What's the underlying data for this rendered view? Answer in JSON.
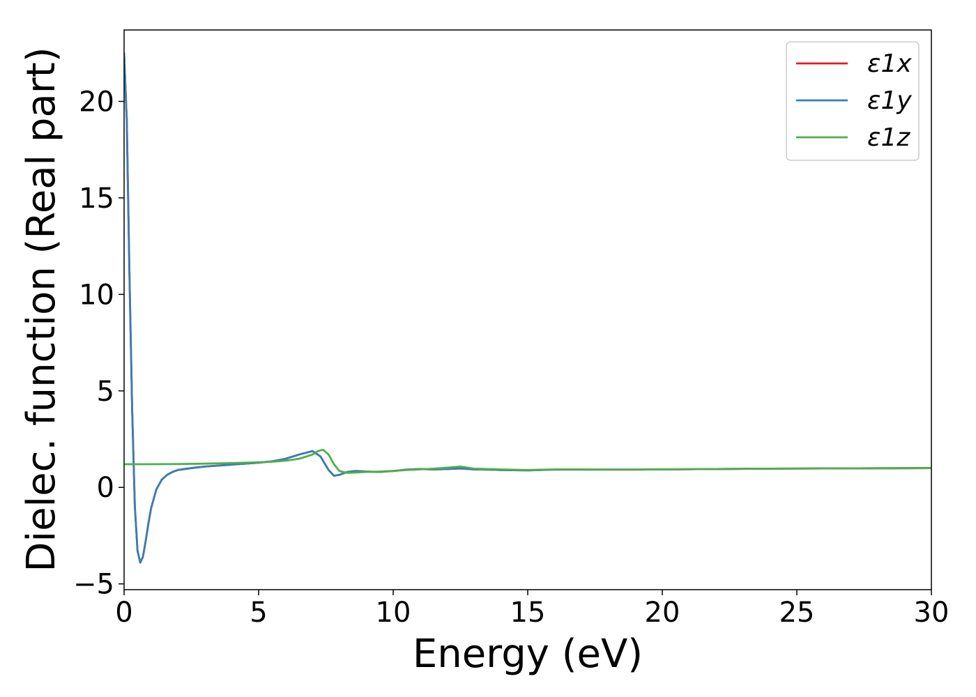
{
  "chart_data": {
    "type": "line",
    "title": "",
    "xlabel": "Energy (eV)",
    "ylabel": "Dielec. function (Real part)",
    "xlim": [
      0,
      30
    ],
    "ylim": [
      -5.3,
      23.7
    ],
    "xticks": [
      0,
      5,
      10,
      15,
      20,
      25,
      30
    ],
    "xtick_labels": [
      "0",
      "5",
      "10",
      "15",
      "20",
      "25",
      "30"
    ],
    "yticks": [
      -5,
      0,
      5,
      10,
      15,
      20
    ],
    "ytick_labels": [
      "−5",
      "0",
      "5",
      "10",
      "15",
      "20"
    ],
    "grid": false,
    "legend_position": "top-right",
    "series": [
      {
        "name": "ε1x",
        "color": "#e41a1c",
        "x": [
          0,
          0.1,
          0.2,
          0.3,
          0.4,
          0.5,
          0.6,
          0.7,
          0.8,
          0.9,
          1.0,
          1.2,
          1.4,
          1.6,
          1.8,
          2.0,
          2.5,
          3.0,
          3.5,
          4.0,
          4.5,
          5.0,
          5.5,
          6.0,
          6.5,
          7.0,
          7.3,
          7.6,
          7.8,
          8.0,
          8.3,
          8.6,
          9.0,
          9.5,
          10.0,
          10.5,
          11.0,
          11.5,
          12.0,
          12.5,
          13.0,
          13.5,
          14.0,
          15.0,
          16.0,
          17.0,
          18.0,
          19.0,
          20.0,
          22.0,
          24.0,
          26.0,
          28.0,
          30.0
        ],
        "values": [
          22.5,
          19.0,
          11.0,
          4.0,
          -1.0,
          -3.3,
          -3.9,
          -3.6,
          -2.8,
          -1.9,
          -1.1,
          -0.1,
          0.4,
          0.65,
          0.8,
          0.9,
          1.0,
          1.08,
          1.13,
          1.18,
          1.23,
          1.28,
          1.35,
          1.48,
          1.7,
          1.88,
          1.6,
          0.9,
          0.6,
          0.65,
          0.8,
          0.85,
          0.82,
          0.8,
          0.85,
          0.92,
          0.95,
          0.93,
          0.95,
          0.98,
          0.93,
          0.92,
          0.9,
          0.88,
          0.92,
          0.92,
          0.92,
          0.92,
          0.93,
          0.95,
          0.97,
          0.98,
          0.99,
          1.0
        ]
      },
      {
        "name": "ε1y",
        "color": "#377eb8",
        "x": [
          0,
          0.1,
          0.2,
          0.3,
          0.4,
          0.5,
          0.6,
          0.7,
          0.8,
          0.9,
          1.0,
          1.2,
          1.4,
          1.6,
          1.8,
          2.0,
          2.5,
          3.0,
          3.5,
          4.0,
          4.5,
          5.0,
          5.5,
          6.0,
          6.5,
          7.0,
          7.3,
          7.6,
          7.8,
          8.0,
          8.3,
          8.6,
          9.0,
          9.5,
          10.0,
          10.5,
          11.0,
          11.5,
          12.0,
          12.5,
          13.0,
          13.5,
          14.0,
          15.0,
          16.0,
          17.0,
          18.0,
          19.0,
          20.0,
          22.0,
          24.0,
          26.0,
          28.0,
          30.0
        ],
        "values": [
          22.5,
          19.0,
          11.0,
          4.0,
          -1.0,
          -3.3,
          -3.9,
          -3.6,
          -2.8,
          -1.9,
          -1.1,
          -0.1,
          0.4,
          0.65,
          0.8,
          0.9,
          1.0,
          1.08,
          1.13,
          1.18,
          1.23,
          1.28,
          1.35,
          1.48,
          1.7,
          1.88,
          1.6,
          0.9,
          0.6,
          0.65,
          0.8,
          0.85,
          0.82,
          0.8,
          0.85,
          0.92,
          0.95,
          0.93,
          0.95,
          0.98,
          0.93,
          0.92,
          0.9,
          0.88,
          0.92,
          0.92,
          0.92,
          0.92,
          0.93,
          0.95,
          0.97,
          0.98,
          0.99,
          1.0
        ]
      },
      {
        "name": "ε1z",
        "color": "#4daf4a",
        "x": [
          0,
          1.0,
          2.0,
          3.0,
          4.0,
          5.0,
          5.5,
          6.0,
          6.5,
          7.0,
          7.2,
          7.4,
          7.6,
          7.8,
          8.0,
          8.3,
          8.6,
          9.0,
          9.5,
          10.0,
          10.5,
          11.0,
          11.5,
          12.0,
          12.5,
          13.0,
          13.5,
          14.0,
          15.0,
          16.0,
          17.0,
          18.0,
          19.0,
          20.0,
          22.0,
          24.0,
          26.0,
          28.0,
          30.0
        ],
        "values": [
          1.2,
          1.2,
          1.21,
          1.23,
          1.26,
          1.3,
          1.33,
          1.38,
          1.48,
          1.7,
          1.88,
          1.95,
          1.7,
          1.2,
          0.85,
          0.75,
          0.77,
          0.8,
          0.82,
          0.85,
          0.9,
          0.93,
          0.97,
          1.02,
          1.08,
          0.97,
          0.95,
          0.93,
          0.9,
          0.93,
          0.93,
          0.92,
          0.92,
          0.93,
          0.95,
          0.97,
          0.98,
          0.99,
          1.0
        ]
      }
    ]
  }
}
